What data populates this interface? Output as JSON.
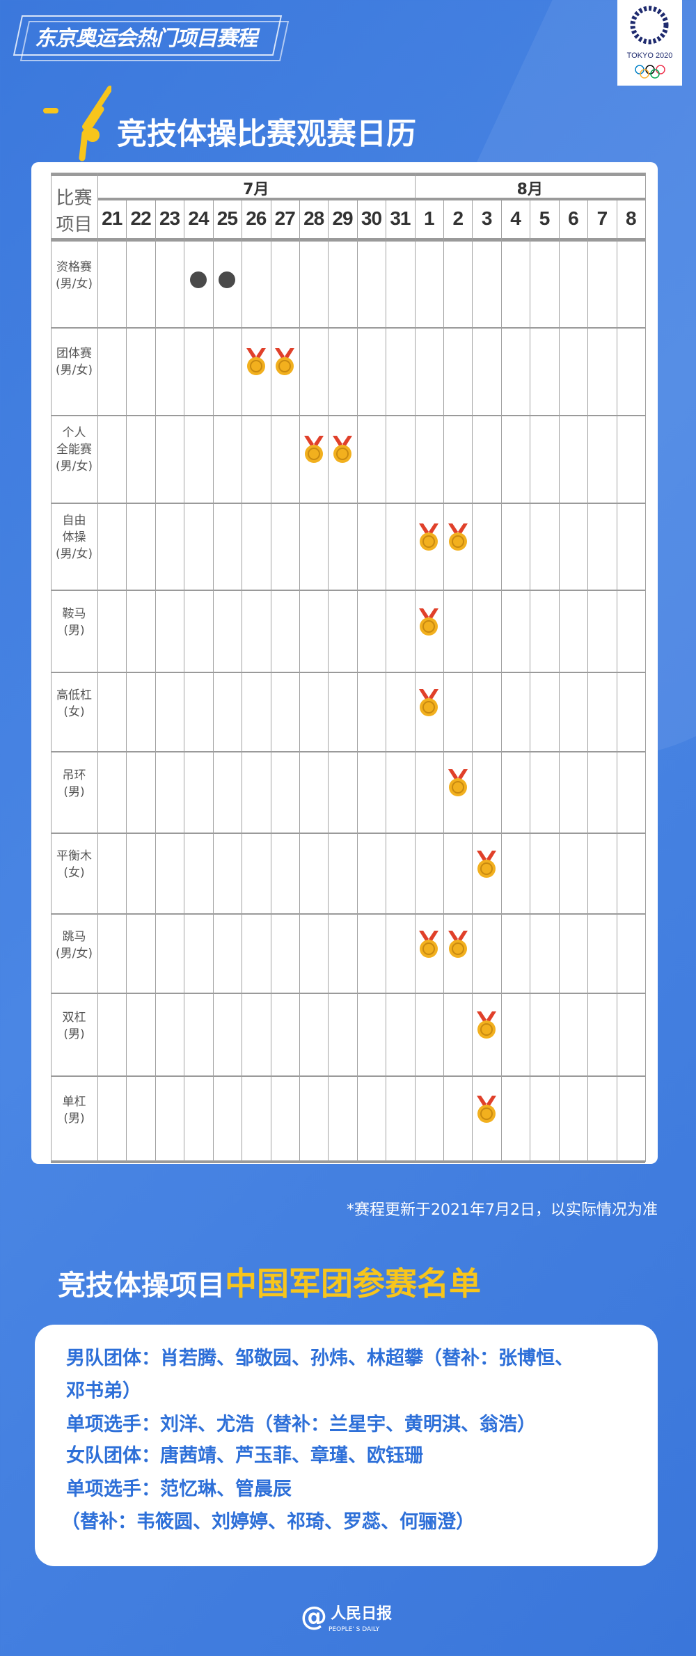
{
  "header": {
    "banner": "东京奥运会热门项目赛程",
    "logo_text": "TOKYO 2020",
    "title": "竞技体操比赛观赛日历"
  },
  "calendar": {
    "corner_label": "比赛\n项目",
    "months": [
      {
        "label": "7月",
        "days": [
          "21",
          "22",
          "23",
          "24",
          "25",
          "26",
          "27",
          "28",
          "29",
          "30",
          "31"
        ]
      },
      {
        "label": "8月",
        "days": [
          "1",
          "2",
          "3",
          "4",
          "5",
          "6",
          "7",
          "8"
        ]
      }
    ],
    "events": [
      {
        "label": "资格赛\n(男/女)",
        "marks": [
          {
            "col": "7/24",
            "type": "dot"
          },
          {
            "col": "7/25",
            "type": "dot"
          }
        ]
      },
      {
        "label": "团体赛\n(男/女)",
        "marks": [
          {
            "col": "7/26",
            "type": "medal"
          },
          {
            "col": "7/27",
            "type": "medal"
          }
        ]
      },
      {
        "label": "个人\n全能赛\n(男/女)",
        "marks": [
          {
            "col": "7/28",
            "type": "medal"
          },
          {
            "col": "7/29",
            "type": "medal"
          }
        ]
      },
      {
        "label": "自由\n体操\n(男/女)",
        "marks": [
          {
            "col": "8/1",
            "type": "medal"
          },
          {
            "col": "8/2",
            "type": "medal"
          }
        ]
      },
      {
        "label": "鞍马\n(男)",
        "marks": [
          {
            "col": "8/1",
            "type": "medal"
          }
        ]
      },
      {
        "label": "高低杠\n(女)",
        "marks": [
          {
            "col": "8/1",
            "type": "medal"
          }
        ]
      },
      {
        "label": "吊环\n(男)",
        "marks": [
          {
            "col": "8/2",
            "type": "medal"
          }
        ]
      },
      {
        "label": "平衡木\n(女)",
        "marks": [
          {
            "col": "8/3",
            "type": "medal"
          }
        ]
      },
      {
        "label": "跳马\n(男/女)",
        "marks": [
          {
            "col": "8/1",
            "type": "medal"
          },
          {
            "col": "8/2",
            "type": "medal"
          }
        ]
      },
      {
        "label": "双杠\n(男)",
        "marks": [
          {
            "col": "8/3",
            "type": "medal"
          }
        ]
      },
      {
        "label": "单杠\n(男)",
        "marks": [
          {
            "col": "8/3",
            "type": "medal"
          }
        ]
      }
    ],
    "footnote": "*赛程更新于2021年7月2日，以实际情况为准"
  },
  "roster": {
    "title_white": "竞技体操项目",
    "title_yellow": "中国军团参赛名单",
    "lines": [
      "男队团体：肖若腾、邹敬园、孙炜、林超攀（替补：张博恒、",
      "邓书弟）",
      "单项选手：刘洋、尤浩（替补：兰星宇、黄明淇、翁浩）",
      "女队团体：唐茜靖、芦玉菲、章瑾、欧钰珊",
      "单项选手：范忆琳、管晨辰",
      "（替补：韦筱圆、刘婷婷、祁琦、罗蕊、何骊澄）"
    ]
  },
  "footer": {
    "logo_cn": "人民日报",
    "logo_en": "PEOPLE' S DAILY"
  },
  "colors": {
    "background": "#3d7bdc",
    "accent_yellow": "#f7c51c",
    "roster_text": "#2d6fd8",
    "dot": "#4a4a4a",
    "medal_gold": "#f2b01e",
    "ribbon_red": "#e0402a"
  }
}
